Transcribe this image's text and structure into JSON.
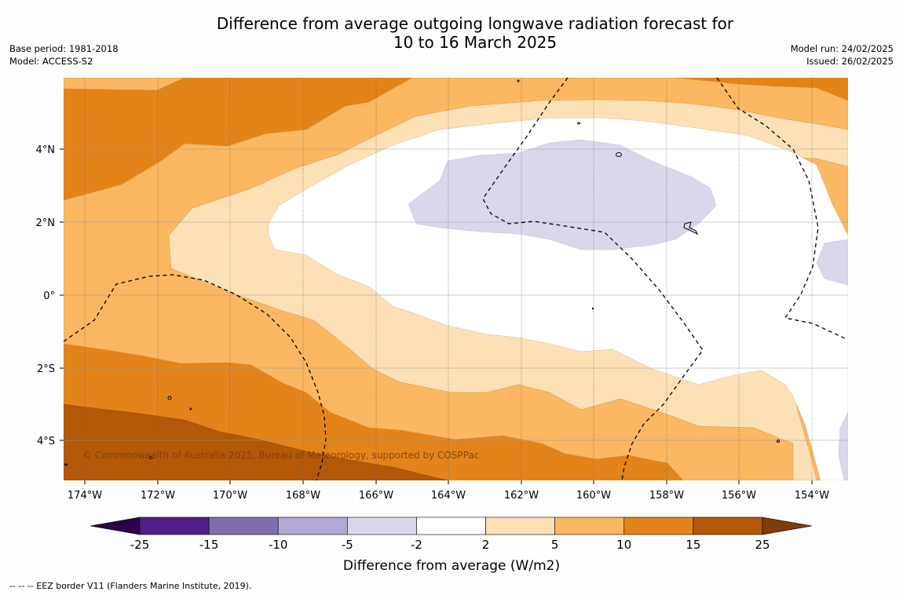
{
  "title_line1": "Difference from average outgoing longwave radiation forecast for",
  "title_line2": "10 to 16 March 2025",
  "base_period": "Base period: 1981-2018",
  "model": "Model: ACCESS-S2",
  "model_run": "Model run: 24/02/2025",
  "issued": "Issued: 26/02/2025",
  "copyright": "© Commonwealth of Australia 2025, Bureau of Meteorology, supported by COSPPac",
  "footnote": "--  --  -- EEZ border V11 (Flanders Marine Institute, 2019).",
  "y_tick_labels": [
    "4°N",
    "2°N",
    "0°",
    "2°S",
    "4°S"
  ],
  "x_tick_labels": [
    "174°W",
    "172°W",
    "170°W",
    "168°W",
    "166°W",
    "164°W",
    "162°W",
    "160°W",
    "158°W",
    "156°W",
    "154°W"
  ],
  "colorbar": {
    "label": "Difference from average (W/m2)",
    "ticks": [
      "-25",
      "-15",
      "-10",
      "-5",
      "-2",
      "2",
      "5",
      "10",
      "15",
      "25"
    ],
    "colors": [
      "#521f88",
      "#7f6ead",
      "#b3a7d4",
      "#d9d7e9",
      "#ffffff",
      "#fde1b6",
      "#fbb761",
      "#e3841a",
      "#b35806"
    ],
    "under_color": "#2d004b",
    "over_color": "#7f3b08"
  },
  "map_fill_colors": {
    "cat_10_15": "#e3841a",
    "cat_5_10": "#fbb761",
    "cat_2_5": "#fde1b6",
    "cat_m2_2": "#ffffff",
    "cat_m5_m2": "#d9d7e9",
    "cat_15_25": "#b35806"
  }
}
